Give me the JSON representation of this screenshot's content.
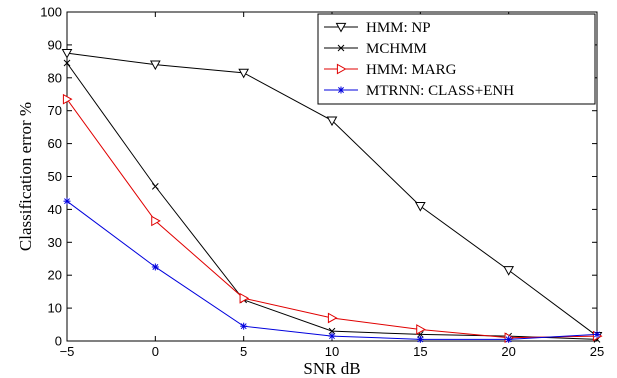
{
  "chart_data": {
    "type": "line",
    "xlabel": "SNR dB",
    "ylabel": "Classification error %",
    "xlim": [
      -5,
      25
    ],
    "ylim": [
      0,
      100
    ],
    "x_ticks": [
      "−5",
      "0",
      "5",
      "10",
      "15",
      "20",
      "25"
    ],
    "y_ticks": [
      "0",
      "10",
      "20",
      "30",
      "40",
      "50",
      "60",
      "70",
      "80",
      "90",
      "100"
    ],
    "grid": false,
    "legend_position": "top-right",
    "x": [
      -5,
      0,
      5,
      10,
      15,
      20,
      25
    ],
    "series": [
      {
        "name": "HMM: NP",
        "values": [
          87.5,
          84,
          81.5,
          67,
          41,
          21.5,
          1.5
        ],
        "color": "#000000",
        "marker": "triangle-down"
      },
      {
        "name": "MCHMM",
        "values": [
          84.5,
          47,
          12.5,
          3,
          2,
          1.5,
          0.5
        ],
        "color": "#000000",
        "marker": "x"
      },
      {
        "name": "HMM: MARG",
        "values": [
          73.5,
          36.5,
          13,
          7,
          3.5,
          1,
          1.5
        ],
        "color": "#e00000",
        "marker": "triangle-right"
      },
      {
        "name": "MTRNN: CLASS+ENH",
        "values": [
          42.5,
          22.5,
          4.5,
          1.5,
          0.5,
          0.5,
          2
        ],
        "color": "#0000dd",
        "marker": "asterisk"
      }
    ]
  }
}
